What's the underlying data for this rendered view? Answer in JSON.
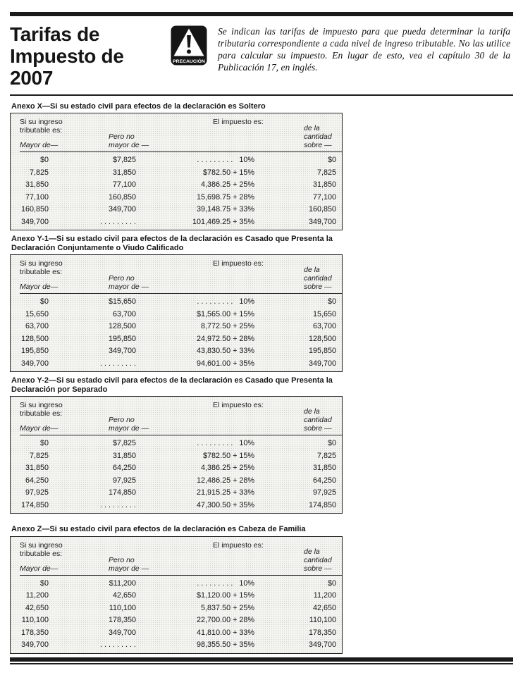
{
  "header": {
    "title_lines": [
      "Tarifas de",
      "Impuesto de",
      "2007"
    ],
    "caution_label": "PRECAUCIÓN",
    "intro": "Se indican las tarifas de impuesto para que pueda determinar la tarifa tributaria correspondiente a cada nivel de ingreso tributable. No las utilice para calcular su impuesto. En lugar de esto, vea el capítulo 30 de la Publicación 17, en inglés."
  },
  "table_headers": {
    "income_label": "Si su ingreso tributable es:",
    "col_mayor_de": "Mayor de—",
    "col_pero_no_mayor": "Pero no mayor de —",
    "tax_label": "El impuesto es:",
    "col_de_la_cantidad": "de la cantidad sobre —"
  },
  "schedules": [
    {
      "caption": "Anexo X—Si su estado civil para efectos de la declaración es Soltero",
      "rows": [
        [
          "$0",
          "$7,825",
          ". . . . . . . . .   10%",
          "$0"
        ],
        [
          "7,825",
          "31,850",
          "$782.50 + 15%",
          "7,825"
        ],
        [
          "31,850",
          "77,100",
          "4,386.25 + 25%",
          "31,850"
        ],
        [
          "77,100",
          "160,850",
          "15,698.75 + 28%",
          "77,100"
        ],
        [
          "160,850",
          "349,700",
          "39,148.75 + 33%",
          "160,850"
        ],
        [
          "349,700",
          ". . . . . . . . .",
          "101,469.25 + 35%",
          "349,700"
        ]
      ]
    },
    {
      "caption": "Anexo Y-1—Si su estado civil para efectos de la declaración es Casado que Presenta la Declaración Conjuntamente o Viudo Calificado",
      "rows": [
        [
          "$0",
          "$15,650",
          ". . . . . . . . .   10%",
          "$0"
        ],
        [
          "15,650",
          "63,700",
          "$1,565.00 + 15%",
          "15,650"
        ],
        [
          "63,700",
          "128,500",
          "8,772.50 + 25%",
          "63,700"
        ],
        [
          "128,500",
          "195,850",
          "24,972.50 + 28%",
          "128,500"
        ],
        [
          "195,850",
          "349,700",
          "43,830.50 + 33%",
          "195,850"
        ],
        [
          "349,700",
          ". . . . . . . . .",
          "94,601.00 + 35%",
          "349,700"
        ]
      ]
    },
    {
      "caption": "Anexo Y-2—Si su estado civil para efectos de la declaración es Casado que Presenta la Declaración por Separado",
      "rows": [
        [
          "$0",
          "$7,825",
          ". . . . . . . . .   10%",
          "$0"
        ],
        [
          "7,825",
          "31,850",
          "$782.50 + 15%",
          "7,825"
        ],
        [
          "31,850",
          "64,250",
          "4,386.25 + 25%",
          "31,850"
        ],
        [
          "64,250",
          "97,925",
          "12,486.25 + 28%",
          "64,250"
        ],
        [
          "97,925",
          "174,850",
          "21,915.25 + 33%",
          "97,925"
        ],
        [
          "174,850",
          ". . . . . . . . .",
          "47,300.50 + 35%",
          "174,850"
        ]
      ]
    },
    {
      "caption": "Anexo Z—Si su estado civil para efectos de la declaración es Cabeza de Familia",
      "rows": [
        [
          "$0",
          "$11,200",
          ". . . . . . . . .   10%",
          "$0"
        ],
        [
          "11,200",
          "42,650",
          "$1,120.00 + 15%",
          "11,200"
        ],
        [
          "42,650",
          "110,100",
          "5,837.50 + 25%",
          "42,650"
        ],
        [
          "110,100",
          "178,350",
          "22,700.00 + 28%",
          "110,100"
        ],
        [
          "178,350",
          "349,700",
          "41,810.00 + 33%",
          "178,350"
        ],
        [
          "349,700",
          ". . . . . . . . .",
          "98,355.50 + 35%",
          "349,700"
        ]
      ]
    }
  ]
}
